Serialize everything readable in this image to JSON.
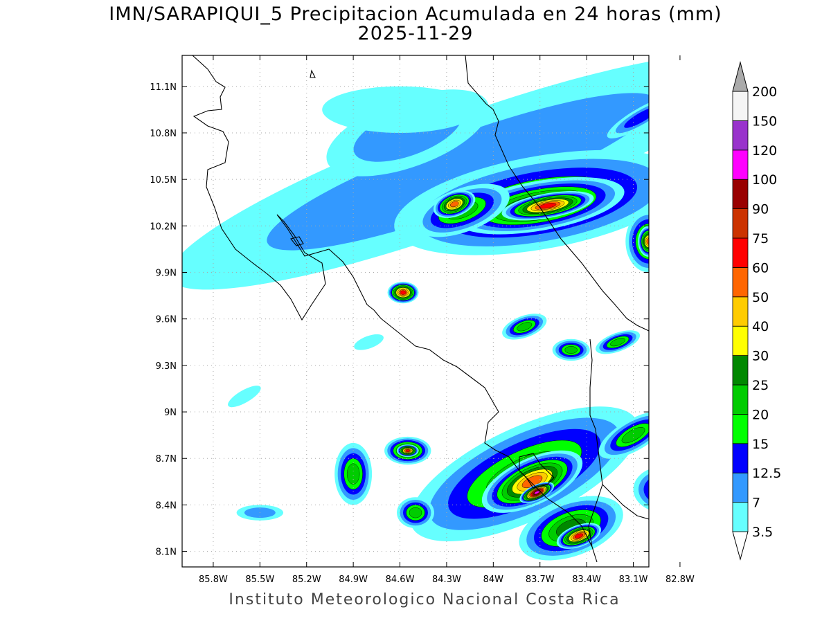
{
  "title": {
    "line1": "IMN/SARAPIQUI_5 Precipitacion Acumulada en 24 horas (mm)",
    "line2": "2025-11-29"
  },
  "footer": "Instituto Meteorologico Nacional Costa Rica",
  "map": {
    "lon_range": [
      -86.0,
      -83.0
    ],
    "lat_range": [
      8.0,
      11.3
    ],
    "lon_ticks": [
      {
        "value": -85.8,
        "label": "85.8W"
      },
      {
        "value": -85.5,
        "label": "85.5W"
      },
      {
        "value": -85.2,
        "label": "85.2W"
      },
      {
        "value": -84.9,
        "label": "84.9W"
      },
      {
        "value": -84.6,
        "label": "84.6W"
      },
      {
        "value": -84.3,
        "label": "84.3W"
      },
      {
        "value": -84.0,
        "label": "84W"
      },
      {
        "value": -83.7,
        "label": "83.7W"
      },
      {
        "value": -83.4,
        "label": "83.4W"
      },
      {
        "value": -83.1,
        "label": "83.1W"
      },
      {
        "value": -82.8,
        "label": "82.8W"
      }
    ],
    "lat_ticks": [
      {
        "value": 11.1,
        "label": "11.1N"
      },
      {
        "value": 10.8,
        "label": "10.8N"
      },
      {
        "value": 10.5,
        "label": "10.5N"
      },
      {
        "value": 10.2,
        "label": "10.2N"
      },
      {
        "value": 9.9,
        "label": "9.9N"
      },
      {
        "value": 9.6,
        "label": "9.6N"
      },
      {
        "value": 9.3,
        "label": "9.3N"
      },
      {
        "value": 9.0,
        "label": "9N"
      },
      {
        "value": 8.7,
        "label": "8.7N"
      },
      {
        "value": 8.4,
        "label": "8.4N"
      },
      {
        "value": 8.1,
        "label": "8.1N"
      }
    ],
    "grid": true
  },
  "colorbar": {
    "levels": [
      "3.5",
      "7",
      "12.5",
      "15",
      "20",
      "25",
      "30",
      "40",
      "50",
      "60",
      "75",
      "90",
      "100",
      "120",
      "150",
      "200"
    ],
    "colors": [
      "#ffffff",
      "#66ffff",
      "#3399ff",
      "#0000ff",
      "#00ff00",
      "#00cc00",
      "#008800",
      "#ffff00",
      "#ffcc00",
      "#ff6600",
      "#ff0000",
      "#cc3300",
      "#990000",
      "#ff00ff",
      "#9933cc",
      "#f5f5f5",
      "#aaaaaa"
    ]
  },
  "rain_cells": [
    {
      "lon": -84.2,
      "lat": 10.55,
      "rx": 2.0,
      "ry": 0.35,
      "level": 2,
      "rot": -20
    },
    {
      "lon": -84.55,
      "lat": 10.8,
      "rx": 0.55,
      "ry": 0.22,
      "level": 2,
      "rot": -20
    },
    {
      "lon": -84.6,
      "lat": 10.95,
      "rx": 0.5,
      "ry": 0.15,
      "level": 1,
      "rot": 0
    },
    {
      "lon": -83.7,
      "lat": 10.35,
      "rx": 0.95,
      "ry": 0.3,
      "level": 5,
      "rot": -10
    },
    {
      "lon": -83.7,
      "lat": 10.33,
      "rx": 0.55,
      "ry": 0.16,
      "level": 8,
      "rot": -10
    },
    {
      "lon": -83.65,
      "lat": 10.33,
      "rx": 0.3,
      "ry": 0.08,
      "level": 10,
      "rot": -10
    },
    {
      "lon": -84.2,
      "lat": 10.3,
      "rx": 0.32,
      "ry": 0.14,
      "level": 5,
      "rot": -20
    },
    {
      "lon": -84.25,
      "lat": 10.34,
      "rx": 0.14,
      "ry": 0.08,
      "level": 9,
      "rot": -20
    },
    {
      "lon": -83.0,
      "lat": 10.1,
      "rx": 0.15,
      "ry": 0.2,
      "level": 6,
      "rot": 0
    },
    {
      "lon": -83.0,
      "lat": 10.1,
      "rx": 0.07,
      "ry": 0.1,
      "level": 9,
      "rot": 0
    },
    {
      "lon": -83.05,
      "lat": 10.9,
      "rx": 0.25,
      "ry": 0.06,
      "level": 3,
      "rot": -30
    },
    {
      "lon": -84.58,
      "lat": 9.77,
      "rx": 0.1,
      "ry": 0.07,
      "level": 10,
      "rot": 0
    },
    {
      "lon": -84.8,
      "lat": 9.45,
      "rx": 0.1,
      "ry": 0.04,
      "level": 1,
      "rot": -20
    },
    {
      "lon": -85.6,
      "lat": 9.1,
      "rx": 0.12,
      "ry": 0.04,
      "level": 1,
      "rot": -30
    },
    {
      "lon": -83.8,
      "lat": 8.6,
      "rx": 0.8,
      "ry": 0.3,
      "level": 5,
      "rot": -25
    },
    {
      "lon": -83.75,
      "lat": 8.55,
      "rx": 0.35,
      "ry": 0.15,
      "level": 9,
      "rot": -25
    },
    {
      "lon": -83.72,
      "lat": 8.48,
      "rx": 0.12,
      "ry": 0.05,
      "level": 13,
      "rot": -25
    },
    {
      "lon": -83.5,
      "lat": 8.25,
      "rx": 0.35,
      "ry": 0.18,
      "level": 6,
      "rot": -20
    },
    {
      "lon": -83.45,
      "lat": 8.2,
      "rx": 0.15,
      "ry": 0.07,
      "level": 10,
      "rot": -20
    },
    {
      "lon": -84.55,
      "lat": 8.75,
      "rx": 0.15,
      "ry": 0.09,
      "level": 7,
      "rot": 0
    },
    {
      "lon": -84.55,
      "lat": 8.75,
      "rx": 0.07,
      "ry": 0.04,
      "level": 10,
      "rot": 0
    },
    {
      "lon": -83.1,
      "lat": 8.85,
      "rx": 0.25,
      "ry": 0.1,
      "level": 5,
      "rot": -30
    },
    {
      "lon": -82.9,
      "lat": 8.5,
      "rx": 0.2,
      "ry": 0.15,
      "level": 5,
      "rot": 0
    },
    {
      "lon": -84.9,
      "lat": 8.6,
      "rx": 0.12,
      "ry": 0.2,
      "level": 5,
      "rot": 0
    },
    {
      "lon": -85.5,
      "lat": 8.35,
      "rx": 0.15,
      "ry": 0.05,
      "level": 2,
      "rot": 0
    },
    {
      "lon": -83.8,
      "lat": 9.55,
      "rx": 0.15,
      "ry": 0.07,
      "level": 5,
      "rot": -20
    },
    {
      "lon": -83.5,
      "lat": 9.4,
      "rx": 0.12,
      "ry": 0.07,
      "level": 5,
      "rot": 0
    },
    {
      "lon": -83.2,
      "lat": 9.45,
      "rx": 0.15,
      "ry": 0.06,
      "level": 5,
      "rot": -20
    },
    {
      "lon": -84.5,
      "lat": 8.35,
      "rx": 0.12,
      "ry": 0.1,
      "level": 5,
      "rot": 0
    }
  ]
}
